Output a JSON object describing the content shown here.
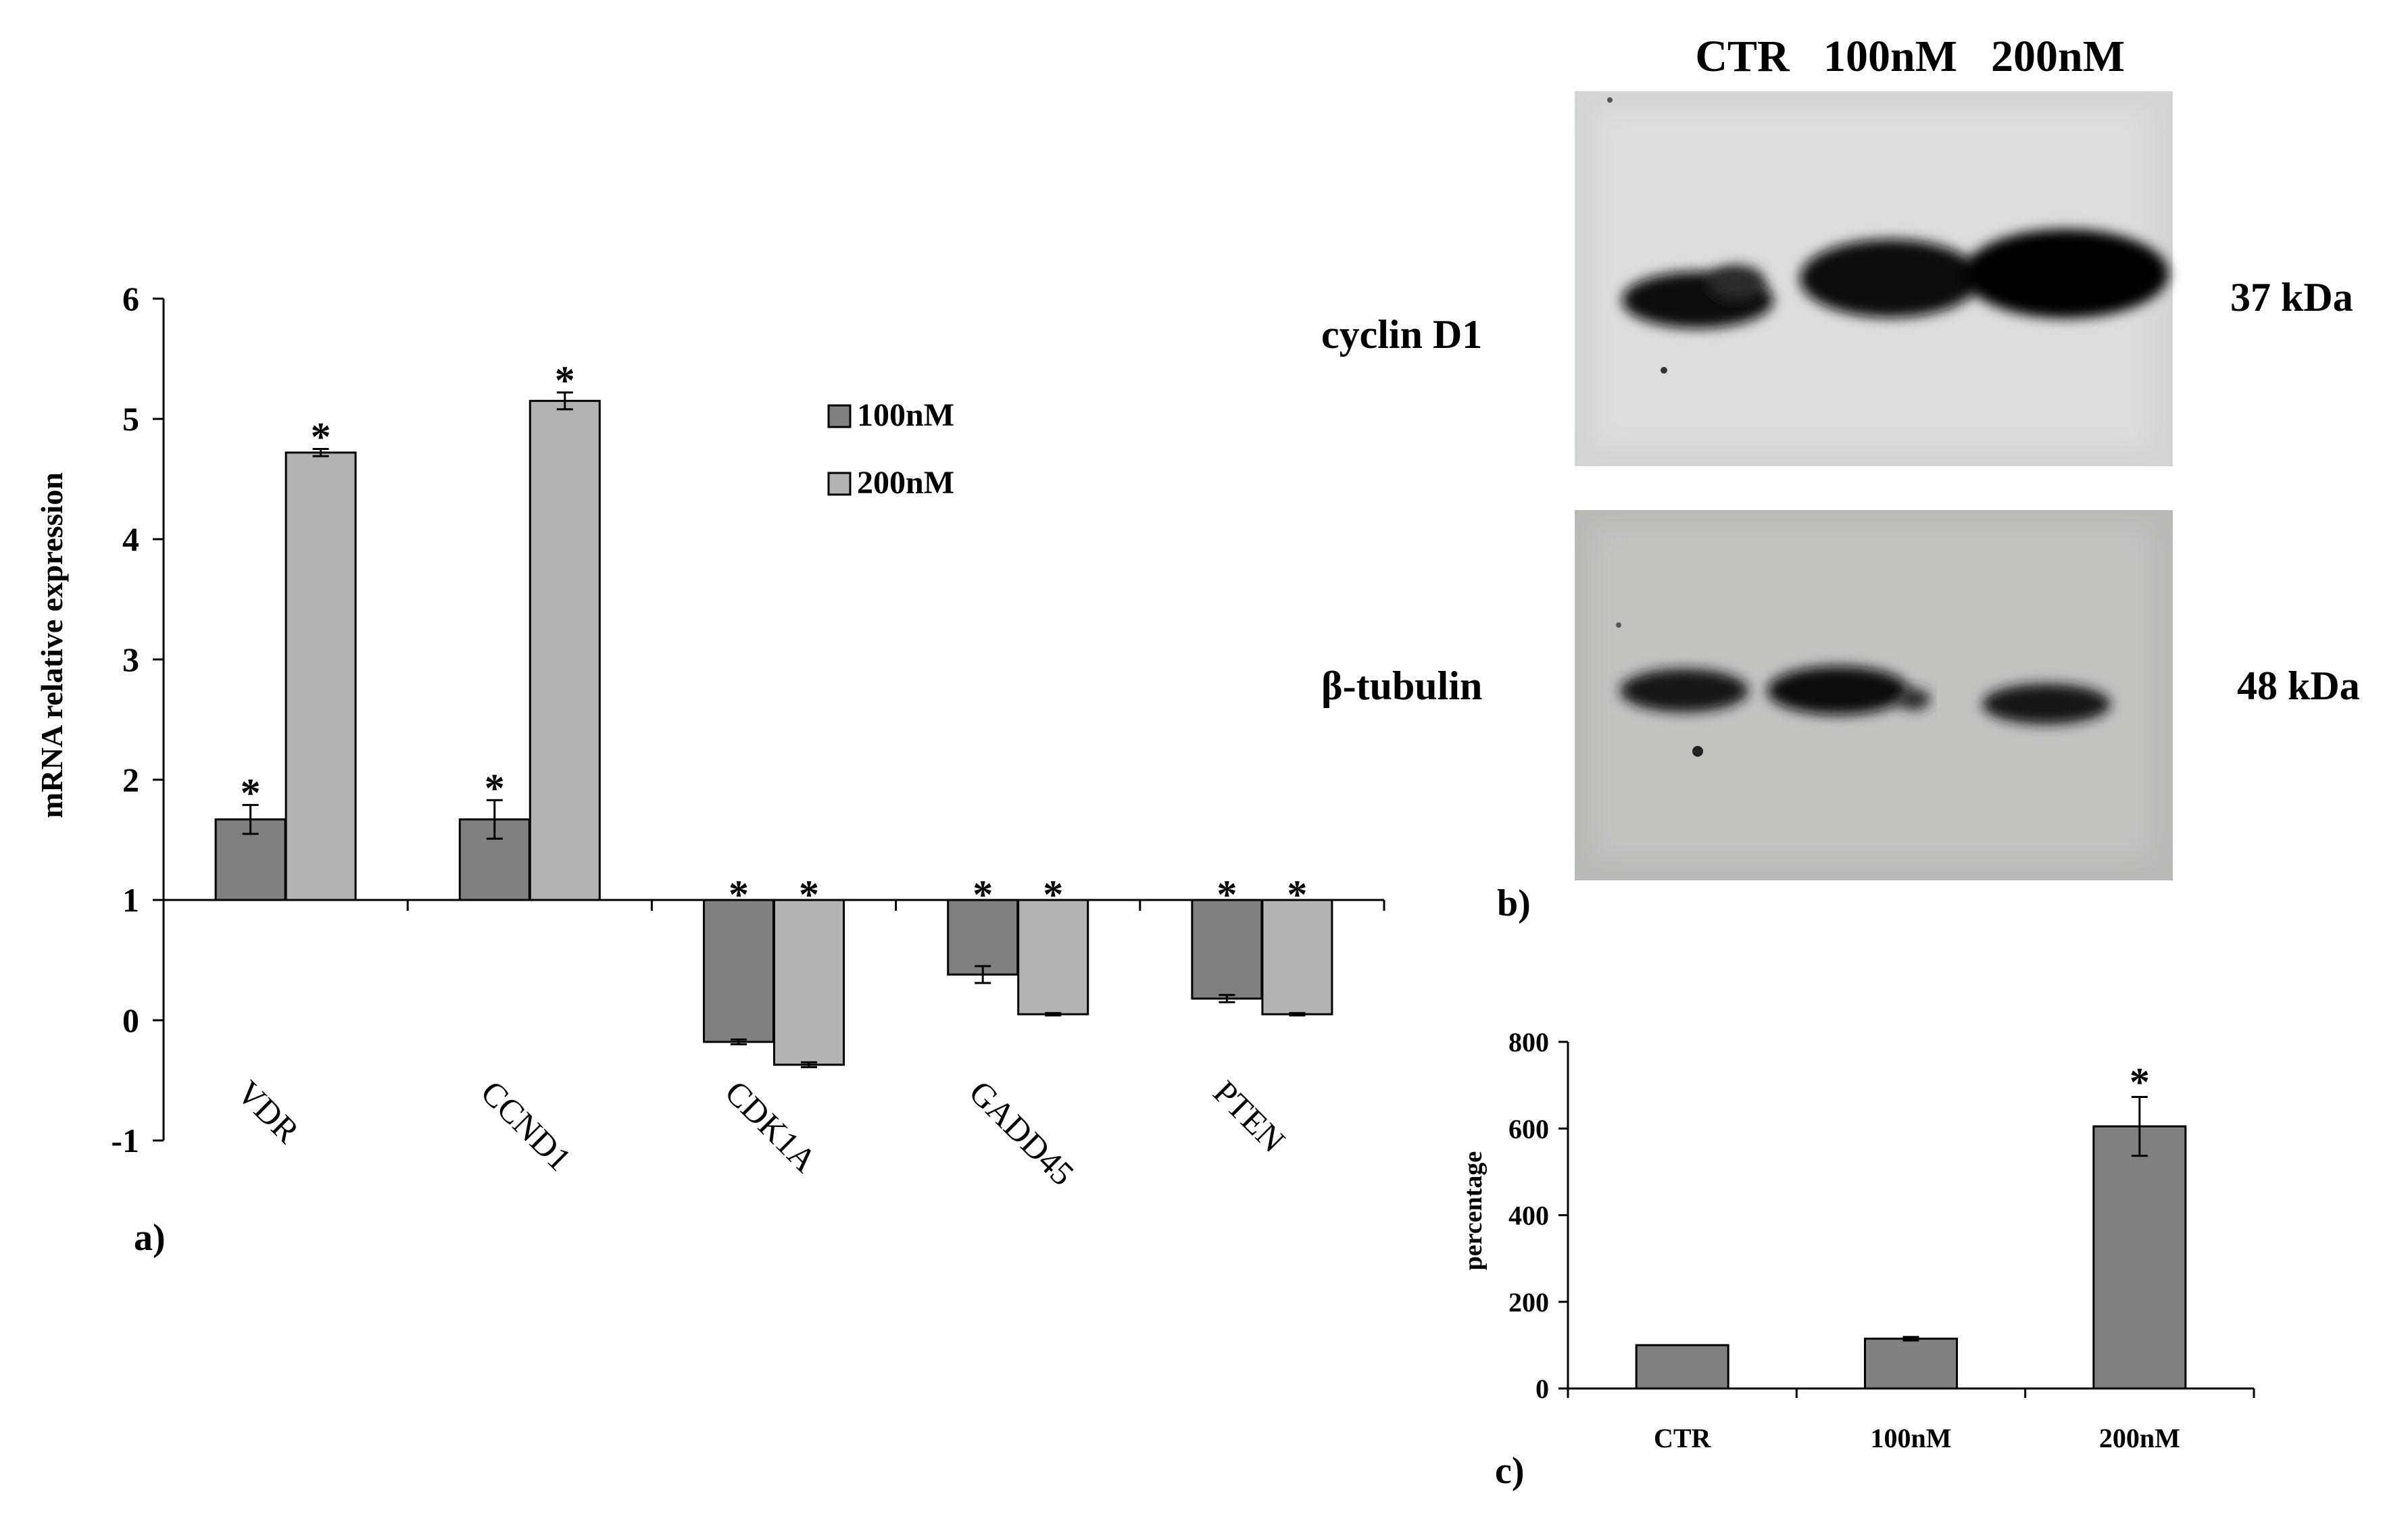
{
  "chart_data": [
    {
      "panel": "a)",
      "type": "bar",
      "ylabel": "mRNA relative expression",
      "ylim": [
        -1,
        6
      ],
      "yticks": [
        "-1",
        "0",
        "1",
        "2",
        "3",
        "4",
        "5",
        "6"
      ],
      "baseline": 1,
      "categories": [
        "VDR",
        "CCND1",
        "CDK1A",
        "GADD45",
        "PTEN"
      ],
      "series": [
        {
          "name": "100nM",
          "color": "#808080",
          "values": [
            1.67,
            1.67,
            -0.18,
            0.38,
            0.18
          ],
          "errors": [
            0.12,
            0.16,
            0.02,
            0.07,
            0.03
          ]
        },
        {
          "name": "200nM",
          "color": "#b3b3b3",
          "values": [
            4.72,
            5.15,
            -0.37,
            0.05,
            0.05
          ],
          "errors": [
            0.03,
            0.07,
            0.02,
            0.01,
            0.01
          ]
        }
      ],
      "significance_marker": "*",
      "legend_position": "top-right"
    },
    {
      "panel": "c)",
      "type": "bar",
      "ylabel": "percentage",
      "ylim": [
        0,
        800
      ],
      "yticks": [
        "0",
        "200",
        "400",
        "600",
        "800"
      ],
      "categories": [
        "CTR",
        "100nM",
        "200nM"
      ],
      "values": [
        100,
        115,
        605
      ],
      "errors": [
        0,
        4,
        68
      ],
      "color": "#808080",
      "significance_marker": "*"
    }
  ],
  "blot": {
    "panel": "b)",
    "lanes": [
      "CTR",
      "100nM",
      "200nM"
    ],
    "rows": [
      {
        "protein": "cyclin D1",
        "size": "37 kDa"
      },
      {
        "protein": "β-tubulin",
        "size": "48 kDa"
      }
    ]
  }
}
